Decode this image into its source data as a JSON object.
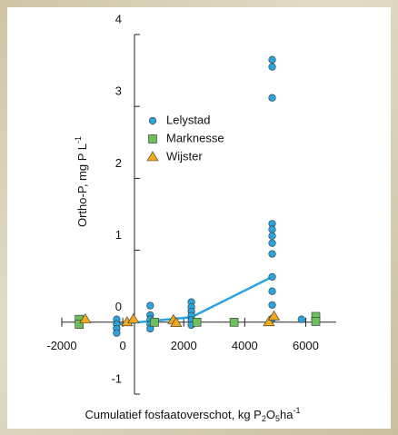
{
  "chart_data": {
    "type": "scatter",
    "x_label": [
      "Cumulatief fosfaatoverschot, kg P",
      "2",
      "O",
      "5",
      "ha",
      "-1"
    ],
    "y_label": [
      "Ortho-P, mg P L",
      "-1"
    ],
    "xlim": [
      -2000,
      7000
    ],
    "xticks": [
      -2000,
      0,
      2000,
      4000,
      6000
    ],
    "ylim": [
      -1,
      4
    ],
    "yticks": [
      -1,
      0,
      1,
      2,
      3,
      4
    ],
    "legend": "upper left",
    "series": [
      {
        "name": "Lelystad",
        "color": "#2aa4de",
        "marker": "circle",
        "x": [
          -200,
          -200,
          -200,
          -200,
          900,
          900,
          900,
          900,
          900,
          2250,
          2250,
          2250,
          2250,
          2250,
          2250,
          4900,
          4900,
          4900,
          4900,
          4900,
          4900,
          4900,
          4900,
          4900,
          4900,
          4900,
          4900,
          5860
        ],
        "values": [
          0.04,
          -0.03,
          -0.09,
          -0.15,
          0.23,
          0.1,
          0.04,
          -0.03,
          -0.09,
          0.28,
          0.21,
          0.15,
          0.09,
          0.03,
          -0.04,
          3.65,
          3.55,
          3.12,
          1.37,
          1.29,
          1.2,
          1.1,
          0.95,
          0.63,
          0.43,
          0.24,
          0.05,
          0.04
        ]
      },
      {
        "name": "Marknesse",
        "color": "#6cbf5a",
        "marker": "square",
        "x": [
          -1430,
          -1430,
          1040,
          2430,
          3650,
          6330,
          6330
        ],
        "values": [
          0.04,
          -0.03,
          0,
          0,
          0,
          0.08,
          0.01
        ]
      },
      {
        "name": "Wijster",
        "color": "#f2a81d",
        "marker": "triangle",
        "x": [
          -1230,
          140,
          350,
          1660,
          1750,
          4790,
          4960
        ],
        "values": [
          0.04,
          0,
          0.04,
          0.03,
          -0.01,
          0,
          0.08
        ]
      }
    ],
    "lines": [
      {
        "color": "#2aa4de",
        "x": [
          -200,
          2250,
          4900
        ],
        "values": [
          -0.03,
          0.07,
          0.63
        ]
      }
    ]
  }
}
